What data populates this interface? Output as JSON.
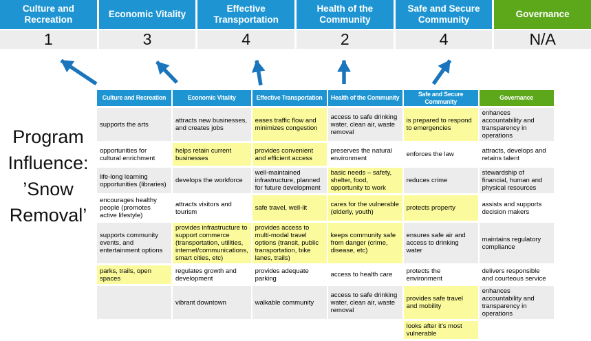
{
  "program_label": {
    "text": "Program Influence: ’Snow Removal’",
    "lines": [
      "Program",
      "Influence:",
      "’Snow",
      "Removal’"
    ]
  },
  "colors": {
    "header_blue": "#1E95D2",
    "header_green": "#5CA71A",
    "highlight_yellow": "#FBFB9D",
    "row_gray": "#ECECEC",
    "score_bg": "#EDEDED",
    "arrow_blue": "#1B75BC"
  },
  "scoreboard": {
    "columns": [
      {
        "label": "Culture and Recreation",
        "score": "1",
        "theme": "blue"
      },
      {
        "label": "Economic Vitality",
        "score": "3",
        "theme": "blue"
      },
      {
        "label": "Effective Transportation",
        "score": "4",
        "theme": "blue"
      },
      {
        "label": "Health of the Community",
        "score": "2",
        "theme": "blue"
      },
      {
        "label": "Safe and Secure Community",
        "score": "4",
        "theme": "blue"
      },
      {
        "label": "Governance",
        "score": "N/A",
        "theme": "green"
      }
    ]
  },
  "matrix": {
    "headers": [
      {
        "label": "Culture and Recreation",
        "theme": "blue"
      },
      {
        "label": "Economic Vitality",
        "theme": "blue"
      },
      {
        "label": "Effective Transportation",
        "theme": "blue"
      },
      {
        "label": "Health of the Community",
        "theme": "blue"
      },
      {
        "label": "Safe and Secure\nCommunity",
        "theme": "blue"
      },
      {
        "label": "Governance",
        "theme": "green"
      }
    ],
    "rows": [
      {
        "shade": "gray",
        "cells": [
          {
            "text": "supports the arts"
          },
          {
            "text": "attracts new businesses, and creates jobs"
          },
          {
            "text": "eases traffic flow and minimizes congestion",
            "highlight": true
          },
          {
            "text": "access to safe drinking water, clean air, waste removal"
          },
          {
            "text": "is prepared to respond to emergencies",
            "highlight": true
          },
          {
            "text": "enhances accountability and transparency in operations"
          }
        ]
      },
      {
        "shade": "white",
        "cells": [
          {
            "text": "opportunities for cultural enrichment"
          },
          {
            "text": "helps retain current businesses",
            "highlight": true
          },
          {
            "text": "provides convenient and efficient access",
            "highlight": true
          },
          {
            "text": "preserves the natural environment"
          },
          {
            "text": "enforces the law"
          },
          {
            "text": "attracts, develops and retains talent"
          }
        ]
      },
      {
        "shade": "gray",
        "cells": [
          {
            "text": "life-long learning opportunities (libraries)"
          },
          {
            "text": "develops the workforce"
          },
          {
            "text": "well-maintained infrastructure, planned for future development"
          },
          {
            "text": "basic needs – safety, shelter, food, opportunity to work",
            "highlight": true
          },
          {
            "text": "reduces crime"
          },
          {
            "text": "stewardship of financial, human and physical resources"
          }
        ]
      },
      {
        "shade": "white",
        "cells": [
          {
            "text": "encourages healthy people (promotes active lifestyle)"
          },
          {
            "text": "attracts visitors and tourism"
          },
          {
            "text": "safe travel, well-lit",
            "highlight": true
          },
          {
            "text": "cares for the vulnerable (elderly, youth)",
            "highlight": true
          },
          {
            "text": "protects property",
            "highlight": true
          },
          {
            "text": "assists and supports decision makers"
          }
        ]
      },
      {
        "shade": "gray",
        "cells": [
          {
            "text": "supports community events, and entertainment options"
          },
          {
            "text": "provides infrastructure to support commerce (transportation, utilities, internet/communications, smart cities, etc)",
            "highlight": true
          },
          {
            "text": "provides access to multi-modal travel options (transit, public transportation, bike lanes, trails)",
            "highlight": true
          },
          {
            "text": "keeps community safe from danger (crime, disease, etc)",
            "highlight": true
          },
          {
            "text": "ensures safe air and access to drinking water"
          },
          {
            "text": "maintains regulatory compliance"
          }
        ]
      },
      {
        "shade": "white",
        "cells": [
          {
            "text": "parks, trails, open spaces",
            "highlight": true
          },
          {
            "text": "regulates growth and development"
          },
          {
            "text": "provides adequate parking"
          },
          {
            "text": "access to health care"
          },
          {
            "text": "protects the environment"
          },
          {
            "text": "delivers responsible and courteous service"
          }
        ]
      },
      {
        "shade": "gray",
        "cells": [
          {
            "text": ""
          },
          {
            "text": "vibrant downtown"
          },
          {
            "text": "walkable community"
          },
          {
            "text": "access to safe drinking water, clean air, waste removal"
          },
          {
            "text": "provides safe travel and mobility",
            "highlight": true
          },
          {
            "text": "enhances accountability and transparency in operations"
          }
        ]
      },
      {
        "shade": "white",
        "cells": [
          {
            "text": ""
          },
          {
            "text": ""
          },
          {
            "text": ""
          },
          {
            "text": ""
          },
          {
            "text": "looks after it's most vulnerable",
            "highlight": true
          },
          {
            "text": ""
          }
        ]
      }
    ]
  }
}
